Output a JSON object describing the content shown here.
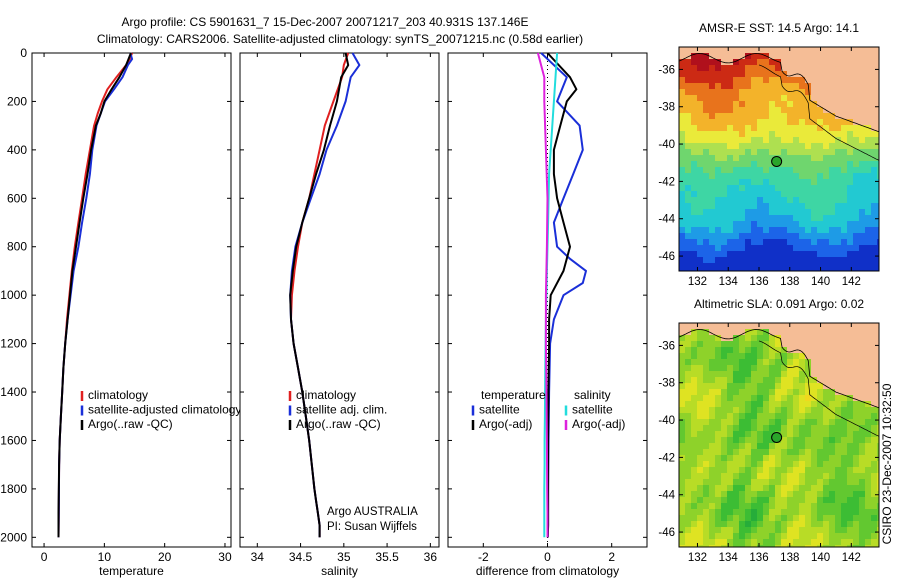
{
  "header": {
    "title_line1": "Argo profile: CS 5901631_7 15-Dec-2007 20071217_203 40.931S 137.146E",
    "title_line2": "Climatology: CARS2006. Satellite-adjusted climatology: synTS_20071215.nc (0.58d earlier)"
  },
  "colors": {
    "climatology": "#e02020",
    "satellite": "#1a2fd8",
    "argo": "#000000",
    "satellite_diff_salinity": "#22dddd",
    "argo_diff_salinity": "#dd22dd",
    "land": "#f5bd96",
    "coast": "#000000"
  },
  "side_text": "CSIRO 23-Dec-2007 10:32:50",
  "credit": {
    "line1": "Argo AUSTRALIA",
    "line2": "PI: Susan Wijffels"
  },
  "chart_data": [
    {
      "type": "line",
      "xlabel": "temperature",
      "ylabel": "",
      "xlim": [
        -2,
        31
      ],
      "ylim": [
        2040,
        0
      ],
      "xticks": [
        "0",
        "10",
        "20",
        "30"
      ],
      "yticks": [
        "0",
        "200",
        "400",
        "600",
        "800",
        "1000",
        "1200",
        "1400",
        "1600",
        "1800",
        "2000"
      ],
      "legend": [
        "climatology",
        "satellite-adjusted climatology",
        "Argo(..raw -QC)"
      ],
      "series": [
        {
          "name": "climatology",
          "color": "climatology",
          "x": [
            14.6,
            14.2,
            13.6,
            12.0,
            10.5,
            9.6,
            8.9,
            8.3,
            7.6,
            6.9,
            6.3,
            5.7,
            5.1,
            4.6,
            4.2,
            3.8,
            3.5,
            3.2,
            3.0,
            2.8,
            2.6,
            2.5,
            2.45,
            2.4
          ],
          "y": [
            0,
            25,
            50,
            100,
            150,
            200,
            250,
            300,
            400,
            500,
            600,
            700,
            800,
            900,
            1000,
            1100,
            1200,
            1300,
            1400,
            1500,
            1600,
            1700,
            1900,
            2000
          ]
        },
        {
          "name": "satellite-adjusted climatology",
          "color": "satellite",
          "x": [
            14.3,
            14.6,
            13.9,
            13.0,
            11.6,
            10.1,
            9.4,
            8.7,
            8.0,
            7.6,
            7.0,
            6.3,
            5.7,
            4.9,
            4.4,
            3.9,
            3.5,
            3.2,
            3.0,
            2.8,
            2.6,
            2.5,
            2.45,
            2.4
          ],
          "y": [
            0,
            25,
            50,
            100,
            150,
            200,
            250,
            300,
            400,
            500,
            600,
            700,
            800,
            900,
            1000,
            1100,
            1200,
            1300,
            1400,
            1500,
            1600,
            1700,
            1900,
            2000
          ]
        },
        {
          "name": "Argo(..raw -QC)",
          "color": "argo",
          "x": [
            14.4,
            14.0,
            13.6,
            12.5,
            11.2,
            10.0,
            9.4,
            8.6,
            7.8,
            7.2,
            6.5,
            5.9,
            5.3,
            4.7,
            4.3,
            3.9,
            3.5,
            3.2,
            3.0,
            2.8,
            2.6,
            2.5,
            2.4,
            2.4
          ],
          "y": [
            0,
            25,
            50,
            100,
            150,
            200,
            250,
            300,
            400,
            500,
            600,
            700,
            800,
            900,
            1000,
            1100,
            1200,
            1300,
            1400,
            1500,
            1600,
            1700,
            1900,
            2000
          ]
        }
      ]
    },
    {
      "type": "line",
      "xlabel": "salinity",
      "xlim": [
        33.8,
        36.1
      ],
      "ylim": [
        2040,
        0
      ],
      "xticks": [
        "34",
        "34.5",
        "35",
        "35.5",
        "36"
      ],
      "legend": [
        "climatology",
        "satellite adj. clim.",
        "Argo(..raw -QC)"
      ],
      "series": [
        {
          "name": "climatology",
          "color": "climatology",
          "x": [
            35.05,
            35.0,
            34.98,
            34.88,
            34.78,
            34.72,
            34.66,
            34.6,
            34.52,
            34.47,
            34.43,
            34.4,
            34.39,
            34.42,
            34.47,
            34.52,
            34.56,
            34.6,
            34.63,
            34.66,
            34.68,
            34.7,
            34.72,
            34.72
          ],
          "y": [
            0,
            50,
            100,
            200,
            300,
            400,
            500,
            600,
            700,
            800,
            900,
            1000,
            1100,
            1200,
            1300,
            1400,
            1500,
            1600,
            1700,
            1800,
            1850,
            1900,
            1950,
            2000
          ]
        },
        {
          "name": "satellite adj. clim.",
          "color": "satellite",
          "x": [
            35.1,
            35.18,
            35.08,
            35.02,
            34.92,
            34.8,
            34.72,
            34.62,
            34.52,
            34.44,
            34.4,
            34.38,
            34.39,
            34.42,
            34.47,
            34.52,
            34.56,
            34.6,
            34.63,
            34.66,
            34.68,
            34.7,
            34.72,
            34.72
          ],
          "y": [
            0,
            50,
            100,
            200,
            300,
            400,
            500,
            600,
            700,
            800,
            900,
            1000,
            1100,
            1200,
            1300,
            1400,
            1500,
            1600,
            1700,
            1800,
            1850,
            1900,
            1950,
            2000
          ]
        },
        {
          "name": "Argo(..raw -QC)",
          "color": "argo",
          "x": [
            35.02,
            35.05,
            34.97,
            34.92,
            34.84,
            34.77,
            34.68,
            34.6,
            34.52,
            34.45,
            34.41,
            34.38,
            34.39,
            34.42,
            34.47,
            34.52,
            34.56,
            34.6,
            34.63,
            34.66,
            34.68,
            34.7,
            34.72,
            34.72
          ],
          "y": [
            0,
            50,
            100,
            200,
            300,
            400,
            500,
            600,
            700,
            800,
            900,
            1000,
            1100,
            1200,
            1300,
            1400,
            1500,
            1600,
            1700,
            1800,
            1850,
            1900,
            1950,
            2000
          ]
        }
      ]
    },
    {
      "type": "line",
      "xlabel": "difference from climatology",
      "xlim": [
        -3.1,
        3.1
      ],
      "ylim": [
        2040,
        0
      ],
      "xticks": [
        "-2",
        "0",
        "2"
      ],
      "legend_groups": [
        {
          "title": "temperature",
          "entries": [
            "satellite",
            "Argo(-adj)"
          ]
        },
        {
          "title": "salinity",
          "entries": [
            "satellite",
            "Argo(-adj)"
          ]
        }
      ],
      "series": [
        {
          "name": "satellite",
          "group": "temperature",
          "color": "satellite",
          "x": [
            -0.2,
            0.6,
            0.3,
            1.0,
            1.1,
            0.8,
            0.5,
            0.2,
            0.3,
            0.7,
            1.2,
            1.1,
            0.5,
            0.2,
            0.08,
            0.05,
            0.03,
            0.02,
            0.02,
            0.02,
            0.01
          ],
          "y": [
            0,
            100,
            200,
            300,
            400,
            500,
            600,
            700,
            800,
            850,
            900,
            950,
            1000,
            1100,
            1200,
            1400,
            1600,
            1800,
            1900,
            1950,
            2000
          ]
        },
        {
          "name": "Argo(-adj)",
          "group": "temperature",
          "color": "argo",
          "x": [
            0.0,
            0.7,
            0.9,
            0.6,
            0.4,
            0.2,
            0.2,
            0.3,
            0.5,
            0.7,
            0.5,
            0.1,
            0.05,
            0.05,
            0.03,
            0.02,
            0.02,
            0.02,
            0.02,
            0.01
          ],
          "y": [
            0,
            100,
            150,
            200,
            300,
            400,
            500,
            600,
            700,
            800,
            900,
            1000,
            1100,
            1200,
            1400,
            1600,
            1800,
            1900,
            1950,
            2000
          ]
        },
        {
          "name": "satellite",
          "group": "salinity",
          "color": "satellite_diff_salinity",
          "x": [
            0.3,
            0.25,
            0.2,
            0.15,
            0.05,
            0.02,
            -0.02,
            -0.05,
            -0.07,
            -0.08,
            -0.09,
            -0.09,
            -0.1,
            -0.1,
            -0.1
          ],
          "y": [
            0,
            100,
            200,
            300,
            500,
            700,
            900,
            1100,
            1300,
            1500,
            1600,
            1700,
            1800,
            1900,
            2000
          ]
        },
        {
          "name": "Argo(-adj)",
          "group": "salinity",
          "color": "argo_diff_salinity",
          "x": [
            -0.3,
            -0.1,
            -0.1,
            -0.05,
            0.0,
            -0.02,
            -0.05,
            -0.05,
            -0.03,
            -0.02,
            -0.01,
            0.0,
            0.0
          ],
          "y": [
            0,
            100,
            200,
            400,
            600,
            800,
            1000,
            1200,
            1400,
            1600,
            1800,
            1900,
            2000
          ]
        }
      ]
    },
    {
      "type": "heatmap",
      "title": "AMSR-E SST: 14.5 Argo: 14.1",
      "xlim": [
        130.8,
        143.8
      ],
      "ylim": [
        -46.8,
        -34.8
      ],
      "xticks": [
        "132",
        "134",
        "136",
        "138",
        "140",
        "142"
      ],
      "yticks": [
        "-36",
        "-38",
        "-40",
        "-42",
        "-44",
        "-46"
      ],
      "marker": {
        "lon": 137.146,
        "lat": -40.931
      },
      "palette": [
        "#1030c8",
        "#1c64e8",
        "#1e9be6",
        "#22c9d2",
        "#3ed6a4",
        "#6fd66e",
        "#aee050",
        "#eaea3a",
        "#f3b32a",
        "#e8731c",
        "#cc2a14",
        "#b0101c"
      ],
      "value_range": [
        9,
        17
      ]
    },
    {
      "type": "heatmap",
      "title": "Altimetric SLA: 0.091 Argo: 0.02",
      "xlim": [
        130.8,
        143.8
      ],
      "ylim": [
        -46.8,
        -34.8
      ],
      "xticks": [
        "132",
        "134",
        "136",
        "138",
        "140",
        "142"
      ],
      "yticks": [
        "-36",
        "-38",
        "-40",
        "-42",
        "-44",
        "-46"
      ],
      "marker": {
        "lon": 137.146,
        "lat": -40.931
      },
      "palette": [
        "#1a9a3a",
        "#26ad3a",
        "#3cbd34",
        "#62c830",
        "#8ed22a",
        "#b8dc26",
        "#dfe322",
        "#f0d81e",
        "#f2c01a"
      ],
      "value_range": [
        -0.1,
        0.2
      ]
    }
  ]
}
